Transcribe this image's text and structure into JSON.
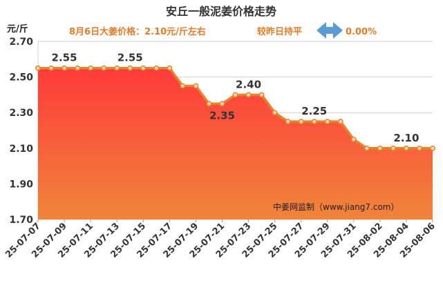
{
  "chart_data": {
    "type": "area",
    "title": "安丘一般泥姜价格走势",
    "subtitle": {
      "price_text": "8月6日大姜价格：2.10元/斤左右",
      "change_text": "较昨日持平",
      "change_value": "0.00%"
    },
    "ylabel": "元/斤",
    "ylim": [
      1.7,
      2.7
    ],
    "yticks": [
      "1.70",
      "1.90",
      "2.10",
      "2.30",
      "2.50",
      "2.70"
    ],
    "x": [
      "25-07-07",
      "25-07-08",
      "25-07-09",
      "25-07-10",
      "25-07-11",
      "25-07-12",
      "25-07-13",
      "25-07-14",
      "25-07-15",
      "25-07-16",
      "25-07-17",
      "25-07-18",
      "25-07-19",
      "25-07-20",
      "25-07-21",
      "25-07-22",
      "25-07-23",
      "25-07-24",
      "25-07-25",
      "25-07-26",
      "25-07-27",
      "25-07-28",
      "25-07-29",
      "25-07-30",
      "25-07-31",
      "25-08-01",
      "25-08-02",
      "25-08-03",
      "25-08-04",
      "25-08-05",
      "25-08-06"
    ],
    "values": [
      2.55,
      2.55,
      2.55,
      2.55,
      2.55,
      2.55,
      2.55,
      2.55,
      2.55,
      2.55,
      2.55,
      2.45,
      2.45,
      2.35,
      2.35,
      2.4,
      2.4,
      2.4,
      2.3,
      2.25,
      2.25,
      2.25,
      2.25,
      2.25,
      2.15,
      2.1,
      2.1,
      2.1,
      2.1,
      2.1,
      2.1
    ],
    "xtick_labels": [
      "25-07-07",
      "25-07-09",
      "25-07-11",
      "25-07-13",
      "25-07-15",
      "25-07-17",
      "25-07-19",
      "25-07-21",
      "25-07-23",
      "25-07-25",
      "25-07-27",
      "25-07-29",
      "25-07-31",
      "25-08-02",
      "25-08-04",
      "25-08-06"
    ],
    "annotations": [
      {
        "index": 2,
        "text": "2.55",
        "pos": "above"
      },
      {
        "index": 7,
        "text": "2.55",
        "pos": "above"
      },
      {
        "index": 14,
        "text": "2.35",
        "pos": "below"
      },
      {
        "index": 16,
        "text": "2.40",
        "pos": "above"
      },
      {
        "index": 21,
        "text": "2.25",
        "pos": "above"
      },
      {
        "index": 28,
        "text": "2.10",
        "pos": "above"
      }
    ],
    "watermark": "中姜网监制（www.jiang7.com）",
    "colors": {
      "line": "#e8822a",
      "marker_fill": "#f7d9b0",
      "fill_top": "#ff3a3a",
      "fill_bottom": "#f0853a",
      "arrow": "#5b9bd5",
      "grid": "#d0d0d0"
    },
    "grid": true
  }
}
